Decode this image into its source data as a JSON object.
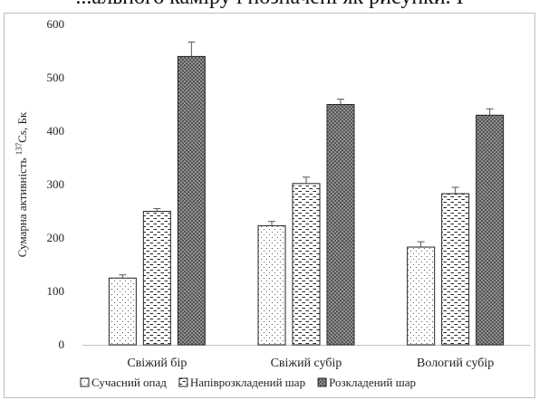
{
  "top_text": "...ального каміру і позначені як рисунки. I",
  "chart_data": {
    "type": "bar",
    "title": "",
    "xlabel": "",
    "ylabel": "Сумарна активність 137Cs, Бк",
    "ylabel_parts": {
      "before": "Сумарна активність ",
      "sup": "137",
      "after": "Cs, Бк"
    },
    "ylim": [
      0,
      600
    ],
    "yticks": [
      "0",
      "100",
      "200",
      "300",
      "400",
      "500",
      "600"
    ],
    "grid": false,
    "legend_position": "bottom",
    "categories": [
      "Свіжий бір",
      "Свіжий субір",
      "Вологий субір"
    ],
    "series": [
      {
        "name": "Сучасний опад",
        "pattern": "dots",
        "values": [
          125,
          223,
          183
        ],
        "errors": [
          6,
          8,
          10
        ]
      },
      {
        "name": "Напіврозкладений шар",
        "pattern": "dashes",
        "values": [
          250,
          302,
          283
        ],
        "errors": [
          5,
          12,
          12
        ]
      },
      {
        "name": "Розкладений шар",
        "pattern": "dense",
        "values": [
          540,
          450,
          430
        ],
        "errors": [
          27,
          10,
          12
        ]
      }
    ]
  }
}
